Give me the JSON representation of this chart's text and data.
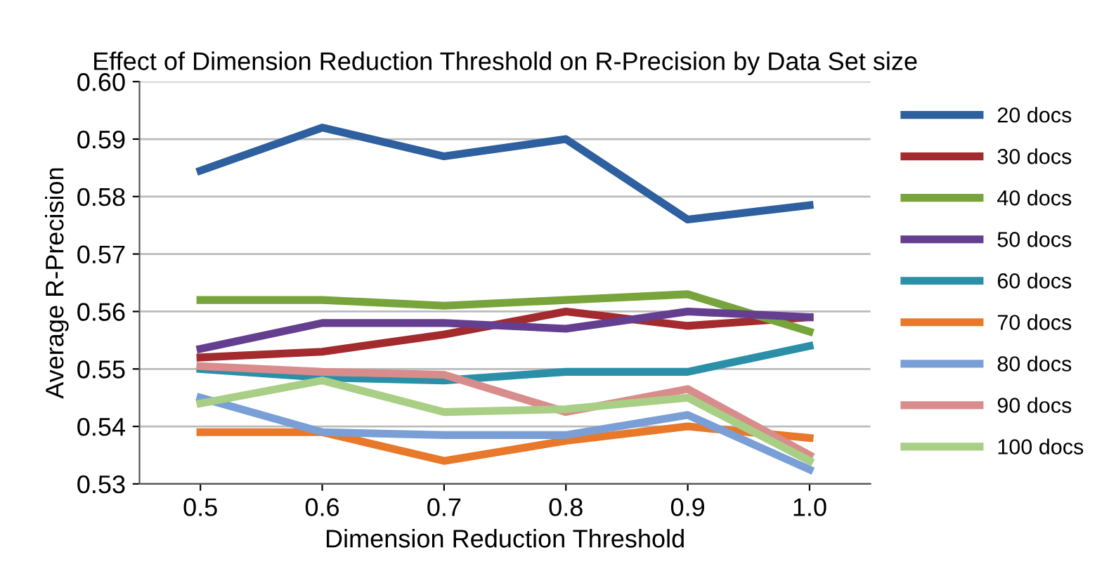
{
  "chart_data": {
    "type": "line",
    "title": "Effect of Dimension Reduction Threshold on R-Precision by Data Set size",
    "xlabel": "Dimension Reduction Threshold",
    "ylabel": "Average R-Precision",
    "categories": [
      "0.5",
      "0.6",
      "0.7",
      "0.8",
      "0.9",
      "1.0"
    ],
    "ylim": [
      0.53,
      0.6
    ],
    "yticks": [
      {
        "value": 0.53,
        "label": "0.53"
      },
      {
        "value": 0.54,
        "label": "0.54"
      },
      {
        "value": 0.55,
        "label": "0.55"
      },
      {
        "value": 0.56,
        "label": "0.56"
      },
      {
        "value": 0.57,
        "label": "0.57"
      },
      {
        "value": 0.58,
        "label": "0.58"
      },
      {
        "value": 0.59,
        "label": "0.59"
      },
      {
        "value": 0.6,
        "label": "0.60"
      }
    ],
    "grid": "y",
    "legend": "right",
    "marker": "none",
    "line_style": "solid",
    "series": [
      {
        "name": "20 docs",
        "color": "#2e5f9e",
        "values": [
          0.5845,
          0.592,
          0.587,
          0.59,
          0.576,
          0.5785
        ]
      },
      {
        "name": "30 docs",
        "color": "#a32b2e",
        "values": [
          0.552,
          0.553,
          0.556,
          0.56,
          0.5575,
          0.559
        ]
      },
      {
        "name": "40 docs",
        "color": "#77a43b",
        "values": [
          0.562,
          0.562,
          0.561,
          0.562,
          0.563,
          0.5565
        ]
      },
      {
        "name": "50 docs",
        "color": "#653f8f",
        "values": [
          0.5535,
          0.558,
          0.558,
          0.557,
          0.56,
          0.559
        ]
      },
      {
        "name": "60 docs",
        "color": "#2b8fa8",
        "values": [
          0.55,
          0.5485,
          0.548,
          0.5495,
          0.5495,
          0.554
        ]
      },
      {
        "name": "70 docs",
        "color": "#e8782a",
        "values": [
          0.539,
          0.539,
          0.534,
          0.5375,
          0.54,
          0.538
        ]
      },
      {
        "name": "80 docs",
        "color": "#7a9fd6",
        "values": [
          0.545,
          0.539,
          0.5385,
          0.5385,
          0.542,
          0.5325
        ]
      },
      {
        "name": "90 docs",
        "color": "#d98c8c",
        "values": [
          0.5505,
          0.5495,
          0.549,
          0.5425,
          0.5465,
          0.535
        ]
      },
      {
        "name": "100 docs",
        "color": "#a8cf85",
        "values": [
          0.544,
          0.548,
          0.5425,
          0.543,
          0.545,
          0.534
        ]
      }
    ]
  }
}
